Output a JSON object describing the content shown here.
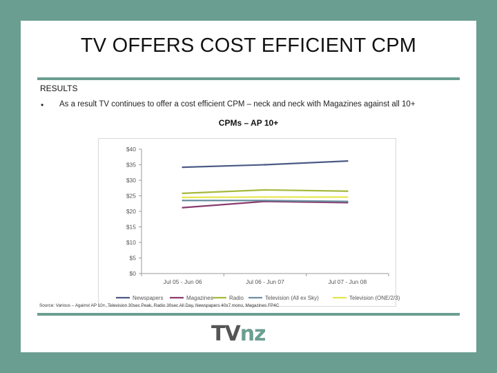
{
  "slide": {
    "title": "TV OFFERS COST EFFICIENT CPM",
    "section_label": "RESULTS",
    "bullet_marker": "•",
    "bullet_text": "As a result TV continues to offer a cost efficient CPM – neck and neck with Magazines against all 10+",
    "source_note": "Source: Various – Against AP 10+, Television 30sec Peak, Radio 30sec All Day, Newspapers 40x7 mono, Magazines FP4C",
    "logo": {
      "part1": "TV",
      "part2": "nz"
    },
    "colors": {
      "accent": "#6a9e90",
      "background": "#ffffff"
    }
  },
  "chart_data": {
    "type": "line",
    "title": "CPMs – AP 10+",
    "categories": [
      "Jul 05 - Jun 06",
      "Jul 06 - Jun 07",
      "Jul 07 - Jun 08"
    ],
    "y_ticks": [
      "$0",
      "$5",
      "$10",
      "$15",
      "$20",
      "$25",
      "$30",
      "$35",
      "$40"
    ],
    "ylim": [
      0,
      40
    ],
    "grid": false,
    "legend_position": "bottom",
    "series": [
      {
        "name": "Newspapers",
        "color": "#4a5a85",
        "values": [
          34.2,
          35,
          36.2
        ]
      },
      {
        "name": "Magazines",
        "color": "#8a3a6e",
        "values": [
          21.2,
          23.2,
          22.8
        ]
      },
      {
        "name": "Radio",
        "color": "#a6b83a",
        "values": [
          25.8,
          26.9,
          26.5
        ]
      },
      {
        "name": "Television (All ex Sky)",
        "color": "#6a8fa0",
        "values": [
          23.5,
          23.5,
          23.2
        ]
      },
      {
        "name": "Television (ONE/2/3)",
        "color": "#e6e64a",
        "values": [
          24.5,
          24.6,
          24.6
        ]
      }
    ]
  }
}
